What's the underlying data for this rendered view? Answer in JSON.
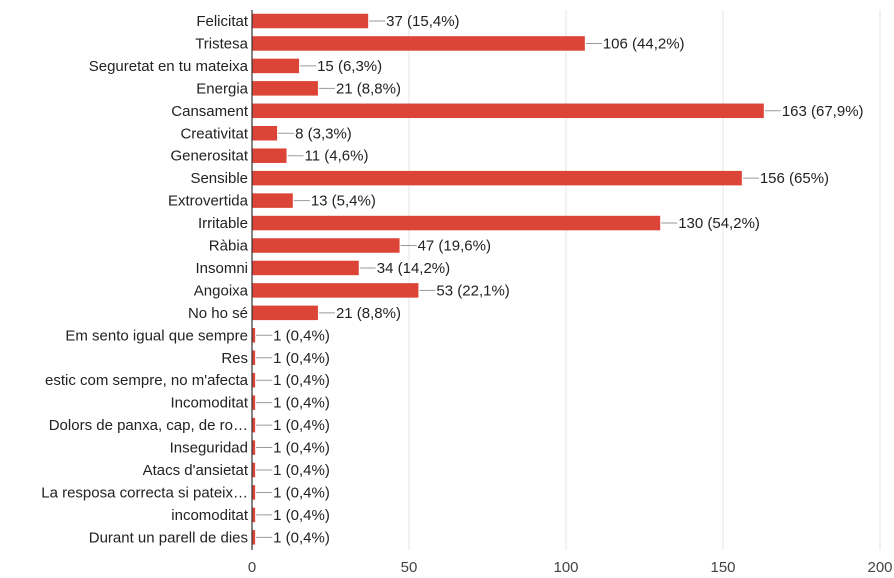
{
  "chart_data": {
    "type": "bar",
    "orientation": "horizontal",
    "categories": [
      "Felicitat",
      "Tristesa",
      "Seguretat en tu mateixa",
      "Energia",
      "Cansament",
      "Creativitat",
      "Generositat",
      "Sensible",
      "Extrovertida",
      "Irritable",
      "Ràbia",
      "Insomni",
      "Angoixa",
      "No ho sé",
      "Em sento igual que sempre",
      "Res",
      "estic com sempre, no m'afecta",
      "Incomoditat",
      "Dolors de panxa, cap, de ro…",
      "Inseguridad",
      "Atacs d'ansietat",
      "La resposa correcta si pateix…",
      "incomoditat",
      "Durant un parell de dies"
    ],
    "values": [
      37,
      106,
      15,
      21,
      163,
      8,
      11,
      156,
      13,
      130,
      47,
      34,
      53,
      21,
      1,
      1,
      1,
      1,
      1,
      1,
      1,
      1,
      1,
      1
    ],
    "data_labels": [
      "37 (15,4%)",
      "106 (44,2%)",
      "15 (6,3%)",
      "21 (8,8%)",
      "163 (67,9%)",
      "8 (3,3%)",
      "11 (4,6%)",
      "156 (65%)",
      "13 (5,4%)",
      "130 (54,2%)",
      "47 (19,6%)",
      "34 (14,2%)",
      "53 (22,1%)",
      "21 (8,8%)",
      "1 (0,4%)",
      "1 (0,4%)",
      "1 (0,4%)",
      "1 (0,4%)",
      "1 (0,4%)",
      "1 (0,4%)",
      "1 (0,4%)",
      "1 (0,4%)",
      "1 (0,4%)",
      "1 (0,4%)"
    ],
    "x_ticks": [
      0,
      50,
      100,
      150,
      200
    ],
    "xlim": [
      0,
      200
    ],
    "title": "",
    "xlabel": "",
    "ylabel": "",
    "grid": "vertical",
    "legend": "none",
    "bar_color": "#dc4437"
  }
}
